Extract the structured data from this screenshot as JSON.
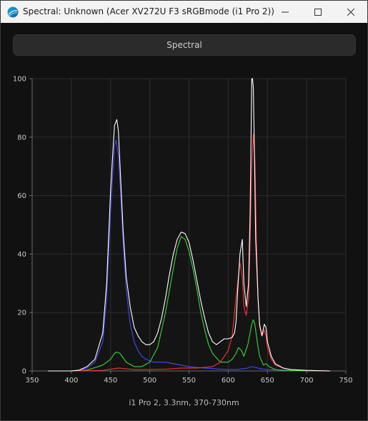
{
  "window": {
    "title": "Spectral: Unknown (Acer XV272U F3 sRGBmode (i1 Pro 2))",
    "icons": {
      "app": "color-wheel-icon",
      "minimize": "minimize-icon",
      "maximize": "maximize-icon",
      "close": "close-icon"
    }
  },
  "tab": {
    "label": "Spectral"
  },
  "footer": {
    "caption": "i1 Pro 2, 3.3nm, 370-730nm"
  },
  "chart_data": {
    "type": "line",
    "title": "",
    "xlabel": "",
    "ylabel": "",
    "xlim": [
      350,
      750
    ],
    "ylim": [
      0,
      100
    ],
    "xticks": [
      350,
      400,
      450,
      500,
      550,
      600,
      650,
      700,
      750
    ],
    "yticks": [
      0,
      20,
      40,
      60,
      80,
      100
    ],
    "grid": true,
    "legend": "none",
    "series": [
      {
        "color": "#4848ff",
        "x": [
          370,
          380,
          400,
          410,
          420,
          430,
          440,
          445,
          450,
          455,
          457,
          460,
          463,
          466,
          470,
          475,
          480,
          485,
          490,
          495,
          500,
          505,
          510,
          520,
          530,
          540,
          550,
          560,
          570,
          580,
          590,
          600,
          610,
          620,
          625,
          630,
          635,
          640,
          650,
          660,
          680,
          700,
          730
        ],
        "y": [
          0,
          0,
          0,
          0.3,
          1,
          3,
          10,
          25,
          55,
          77,
          79,
          74,
          60,
          44,
          28,
          16,
          10,
          7,
          5,
          4,
          3.5,
          3,
          3,
          3,
          2.5,
          2,
          1.5,
          1.2,
          1,
          0.8,
          0.6,
          0.5,
          0.5,
          0.8,
          1,
          1.5,
          1.2,
          0.8,
          0.5,
          0.4,
          0.2,
          0.1,
          0
        ]
      },
      {
        "color": "#38d838",
        "x": [
          370,
          400,
          420,
          440,
          450,
          455,
          458,
          462,
          466,
          470,
          480,
          490,
          500,
          510,
          520,
          530,
          535,
          540,
          545,
          550,
          555,
          560,
          565,
          570,
          575,
          580,
          590,
          600,
          605,
          610,
          613,
          617,
          620,
          625,
          630,
          632,
          634,
          637,
          640,
          645,
          648,
          652,
          660,
          670,
          700,
          730
        ],
        "y": [
          0,
          0,
          0.3,
          2,
          4,
          6,
          6.5,
          6,
          4.5,
          3,
          1.5,
          1.5,
          3,
          8,
          20,
          35,
          42,
          46,
          45,
          41,
          35,
          28,
          20,
          14,
          9,
          6,
          3,
          3,
          4,
          6,
          8,
          7,
          5,
          9,
          16,
          17.5,
          16,
          10,
          5,
          2,
          2.5,
          1.5,
          0.5,
          0.2,
          0.1,
          0
        ]
      },
      {
        "color": "#ff3030",
        "x": [
          370,
          400,
          440,
          460,
          480,
          500,
          520,
          540,
          560,
          580,
          590,
          600,
          605,
          608,
          612,
          615,
          618,
          620,
          623,
          626,
          628,
          630,
          632,
          634,
          636,
          638,
          640,
          643,
          646,
          648,
          650,
          655,
          660,
          670,
          680,
          700,
          730
        ],
        "y": [
          0,
          0,
          0.2,
          1,
          0.5,
          0.5,
          0.6,
          1,
          1,
          1.5,
          3,
          7,
          12,
          20,
          30,
          37,
          32,
          22,
          19,
          25,
          45,
          70,
          81,
          72,
          45,
          25,
          15,
          12,
          14,
          12,
          8,
          4,
          2,
          1,
          0.5,
          0.2,
          0
        ]
      },
      {
        "color": "#ffffff",
        "x": [
          370,
          400,
          410,
          420,
          430,
          440,
          445,
          450,
          455,
          458,
          460,
          463,
          466,
          470,
          475,
          480,
          485,
          490,
          495,
          500,
          505,
          510,
          515,
          520,
          525,
          530,
          535,
          540,
          545,
          550,
          555,
          560,
          565,
          570,
          575,
          580,
          585,
          590,
          595,
          600,
          605,
          608,
          610,
          612,
          615,
          618,
          620,
          623,
          626,
          628,
          630,
          631,
          632,
          633,
          635,
          638,
          640,
          643,
          646,
          648,
          650,
          655,
          660,
          670,
          680,
          700,
          730
        ],
        "y": [
          0,
          0,
          0.3,
          1.5,
          4,
          13,
          30,
          62,
          84,
          86,
          82,
          65,
          48,
          32,
          22,
          15,
          12,
          10,
          9,
          9,
          10,
          13,
          18,
          25,
          33,
          40,
          45,
          47.5,
          47,
          44,
          38,
          31,
          24,
          18,
          13,
          10,
          9,
          10,
          11,
          11,
          11.5,
          13,
          17,
          27,
          40,
          45,
          30,
          22,
          30,
          55,
          100,
          100,
          97,
          82,
          45,
          25,
          16,
          12,
          16,
          15,
          10,
          5,
          2.5,
          1,
          0.5,
          0.2,
          0
        ]
      }
    ]
  }
}
